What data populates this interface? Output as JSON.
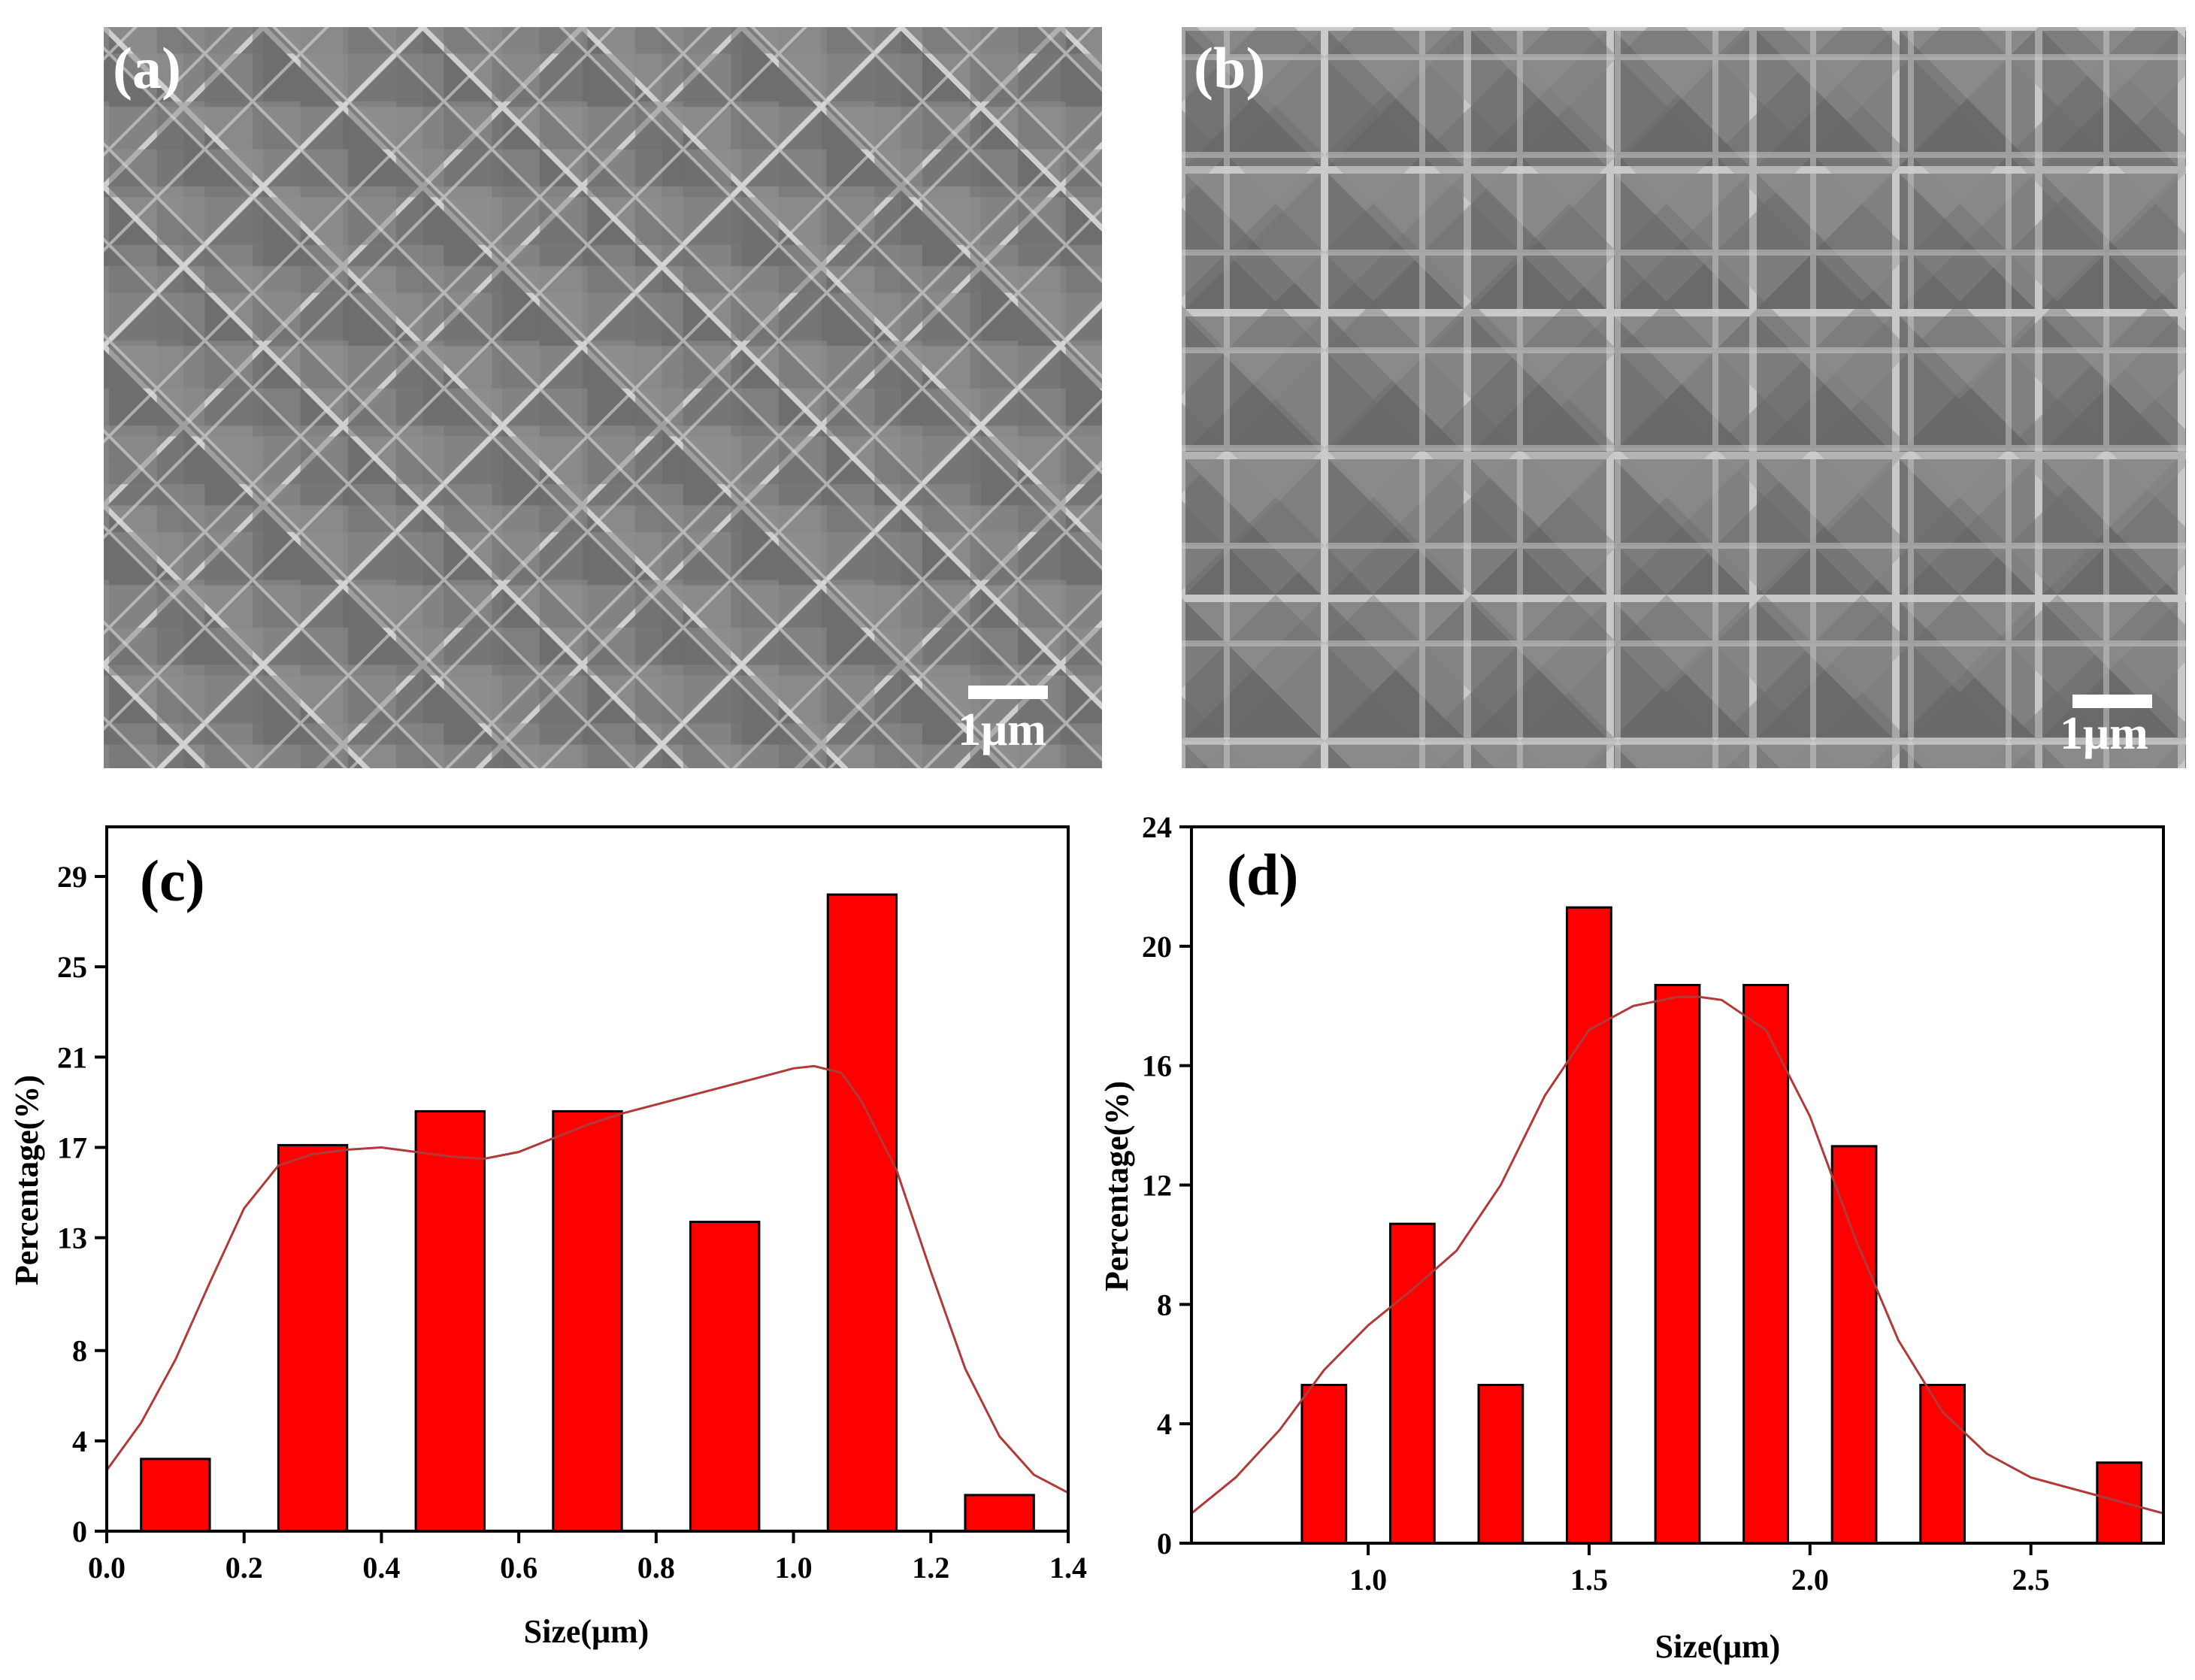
{
  "panels": {
    "a": {
      "label": "(a)",
      "scale_label": "1μm"
    },
    "b": {
      "label": "(b)",
      "scale_label": "1μm"
    }
  },
  "colors": {
    "bar": "#ff0000",
    "curve": "#b03a3a",
    "axis": "#000000"
  },
  "chart_data": [
    {
      "type": "bar",
      "panel": "(c)",
      "x": [
        0.1,
        0.3,
        0.5,
        0.7,
        0.9,
        1.1,
        1.3
      ],
      "values": [
        3.2,
        17.1,
        18.6,
        18.6,
        13.7,
        28.2,
        1.6
      ],
      "bar_width": 0.1,
      "xlim": [
        0.0,
        1.4
      ],
      "ylim": [
        0,
        31.2
      ],
      "xticks": [
        0.0,
        0.2,
        0.4,
        0.6,
        0.8,
        1.0,
        1.2,
        1.4
      ],
      "xtick_labels": [
        "0.0",
        "0.2",
        "0.4",
        "0.6",
        "0.8",
        "1.0",
        "1.2",
        "1.4"
      ],
      "yticks": [
        0,
        4,
        8,
        13,
        17,
        21,
        25,
        29
      ],
      "ytick_labels": [
        "0",
        "4",
        "8",
        "13",
        "17",
        "21",
        "25",
        "29"
      ],
      "xlabel": "Size(μm)",
      "ylabel": "Percentage(%)",
      "fit_curve": {
        "x": [
          0.0,
          0.05,
          0.1,
          0.15,
          0.2,
          0.25,
          0.3,
          0.35,
          0.4,
          0.45,
          0.5,
          0.55,
          0.6,
          0.65,
          0.7,
          0.75,
          0.8,
          0.85,
          0.9,
          0.95,
          1.0,
          1.03,
          1.07,
          1.1,
          1.15,
          1.2,
          1.25,
          1.3,
          1.35,
          1.4
        ],
        "y": [
          2.7,
          4.8,
          7.6,
          11.0,
          14.3,
          16.2,
          16.7,
          16.9,
          17.0,
          16.8,
          16.6,
          16.5,
          16.8,
          17.4,
          18.0,
          18.5,
          18.9,
          19.3,
          19.7,
          20.1,
          20.5,
          20.6,
          20.3,
          19.0,
          16.0,
          11.5,
          7.2,
          4.2,
          2.5,
          1.7
        ]
      }
    },
    {
      "type": "bar",
      "panel": "(d)",
      "x": [
        0.9,
        1.1,
        1.3,
        1.5,
        1.7,
        1.9,
        2.1,
        2.3,
        2.7
      ],
      "values": [
        5.3,
        10.7,
        5.3,
        21.3,
        18.7,
        18.7,
        13.3,
        5.3,
        2.7
      ],
      "bar_width": 0.1,
      "xlim": [
        0.6,
        2.8
      ],
      "ylim": [
        0,
        24
      ],
      "xticks": [
        1.0,
        1.5,
        2.0,
        2.5
      ],
      "xtick_labels": [
        "1.0",
        "1.5",
        "2.0",
        "2.5"
      ],
      "yticks": [
        0,
        4,
        8,
        12,
        16,
        20,
        24
      ],
      "ytick_labels": [
        "0",
        "4",
        "8",
        "12",
        "16",
        "20",
        "24"
      ],
      "xlabel": "Size(μm)",
      "ylabel": "Percentage(%)",
      "fit_curve": {
        "x": [
          0.6,
          0.7,
          0.8,
          0.9,
          1.0,
          1.1,
          1.2,
          1.3,
          1.4,
          1.5,
          1.6,
          1.7,
          1.75,
          1.8,
          1.9,
          2.0,
          2.1,
          2.2,
          2.3,
          2.4,
          2.5,
          2.6,
          2.7,
          2.8
        ],
        "y": [
          1.0,
          2.2,
          3.8,
          5.8,
          7.3,
          8.5,
          9.8,
          12.0,
          15.0,
          17.2,
          18.0,
          18.3,
          18.3,
          18.2,
          17.2,
          14.3,
          10.3,
          6.8,
          4.4,
          3.0,
          2.2,
          1.8,
          1.4,
          1.0
        ]
      }
    }
  ]
}
